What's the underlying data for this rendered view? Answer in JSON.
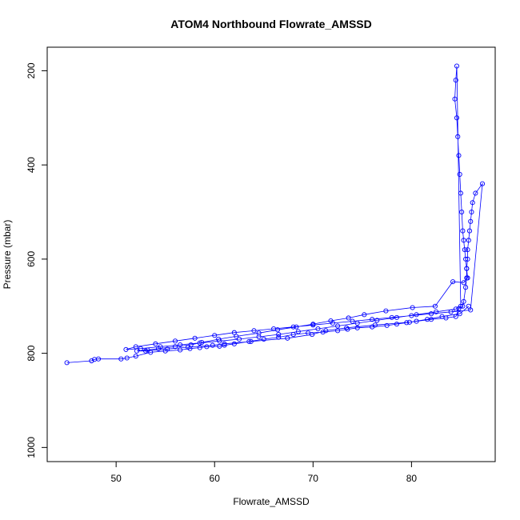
{
  "chart_data": {
    "type": "scatter",
    "title": "ATOM4 Northbound Flowrate_AMSSD",
    "xlabel": "Flowrate_AMSSD",
    "ylabel": "Pressure (mbar)",
    "xlim": [
      43.0,
      88.5
    ],
    "ylim": [
      1030,
      150
    ],
    "y_reversed": true,
    "x_ticks": [
      50,
      60,
      70,
      80
    ],
    "y_ticks": [
      200,
      400,
      600,
      800,
      1000
    ],
    "grid": false,
    "legend": "none",
    "colors": {
      "series": "#0000ff",
      "axis": "#000000"
    },
    "series": [
      {
        "x": [
          45.0,
          47.5,
          47.8,
          48.2,
          50.5,
          51.1,
          52.0,
          53.5,
          55.0,
          56.5,
          57.5,
          58.5,
          59.2,
          60.5,
          61.0,
          62.0,
          63.5,
          65.0,
          66.5,
          68.0,
          69.5,
          71.0,
          72.5,
          73.5,
          74.5,
          76.0,
          77.5,
          78.5,
          79.5,
          80.5,
          82.0,
          83.5,
          84.5,
          84.8,
          85.2,
          85.3,
          85.5,
          85.6,
          85.6,
          85.7,
          85.7,
          85.8,
          85.9,
          86.0,
          86.1,
          86.2,
          86.5,
          87.2,
          86.0,
          84.0,
          82.0,
          80.0,
          78.0,
          76.0,
          74.0,
          72.0,
          70.0,
          68.0,
          66.0,
          64.0,
          62.0,
          60.0,
          58.0,
          56.0,
          54.0,
          52.0,
          51.0,
          52.5,
          54.5,
          56.5,
          58.5,
          60.5,
          62.5,
          64.5,
          66.5,
          68.5,
          70.5,
          72.5,
          74.5,
          76.5,
          78.5,
          80.5,
          82.5,
          84.5,
          85.0,
          84.6,
          84.5,
          84.4,
          84.6,
          84.7,
          84.8,
          84.9,
          85.0,
          85.1,
          85.2,
          85.3,
          85.4,
          85.5,
          85.6,
          85.7,
          85.3,
          84.2,
          82.4,
          80.1,
          77.4,
          75.2,
          73.6,
          71.8,
          70.0,
          68.3,
          66.4,
          64.5,
          62.2,
          60.4,
          58.7,
          57.6,
          56.0,
          54.3,
          53.2,
          52.1,
          53.0,
          55.2,
          57.3,
          59.8,
          61.0,
          63.7,
          67.4,
          69.9,
          71.3,
          73.4,
          76.3,
          79.8,
          81.6,
          83.1,
          84.9,
          85.8
        ],
        "y": [
          820,
          816,
          813,
          812,
          812,
          810,
          806,
          798,
          795,
          793,
          790,
          788,
          786,
          785,
          783,
          780,
          775,
          770,
          766,
          760,
          757,
          755,
          752,
          749,
          746,
          744,
          741,
          738,
          735,
          732,
          728,
          725,
          722,
          705,
          700,
          690,
          660,
          640,
          620,
          600,
          580,
          560,
          540,
          520,
          500,
          480,
          460,
          440,
          708,
          712,
          716,
          720,
          724,
          728,
          732,
          736,
          740,
          744,
          748,
          752,
          756,
          762,
          768,
          774,
          780,
          786,
          792,
          790,
          786,
          782,
          778,
          774,
          770,
          765,
          760,
          754,
          748,
          742,
          736,
          730,
          724,
          718,
          712,
          706,
          700,
          190,
          220,
          260,
          300,
          340,
          380,
          420,
          460,
          500,
          540,
          560,
          580,
          600,
          620,
          640,
          650,
          648,
          700,
          703,
          710,
          718,
          725,
          731,
          738,
          744,
          750,
          757,
          764,
          770,
          777,
          782,
          786,
          790,
          793,
          795,
          795,
          791,
          787,
          783,
          780,
          775,
          768,
          760,
          752,
          746,
          740,
          734,
          728,
          722,
          716,
          700
        ]
      }
    ]
  }
}
